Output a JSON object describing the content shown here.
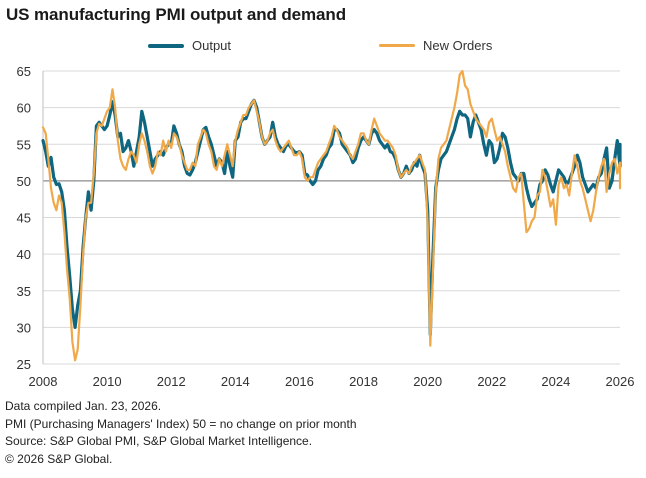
{
  "title": "US manufacturing PMI output and demand",
  "legend": [
    {
      "name": "Output",
      "color": "#0e6680"
    },
    {
      "name": "New Orders",
      "color": "#f0a848"
    }
  ],
  "footer": [
    "Data compiled Jan. 23, 2026.",
    "PMI (Purchasing Managers' Index) 50 = no change on prior month",
    "Source: S&P Global PMI, S&P Global Market Intelligence.",
    "© 2026 S&P Global."
  ],
  "chart_data": {
    "type": "line",
    "title": "US manufacturing PMI output and demand",
    "xlabel": "",
    "ylabel": "",
    "xlim": [
      2008,
      2026
    ],
    "ylim": [
      25,
      65
    ],
    "x_ticks": [
      "2008",
      "2010",
      "2012",
      "2014",
      "2016",
      "2018",
      "2020",
      "2022",
      "2024",
      "2026"
    ],
    "y_ticks": [
      25,
      30,
      35,
      40,
      45,
      50,
      55,
      60,
      65
    ],
    "reference_line": 50,
    "grid": true,
    "legend_position": "top",
    "x_start": "2008-01",
    "x_frequency": "monthly",
    "series": [
      {
        "name": "Output",
        "color": "#0e6680",
        "values": [
          55.5,
          54.0,
          52.0,
          53.2,
          50.5,
          49.5,
          49.6,
          48.5,
          46.0,
          41.0,
          37.0,
          32.5,
          30.0,
          33.0,
          35.0,
          41.0,
          45.0,
          48.5,
          46.0,
          50.0,
          57.5,
          58.0,
          57.5,
          57.0,
          57.5,
          59.0,
          60.8,
          59.0,
          56.0,
          56.5,
          54.0,
          54.5,
          55.5,
          54.0,
          52.0,
          54.0,
          56.0,
          59.5,
          58.0,
          56.0,
          54.0,
          52.0,
          53.0,
          53.5,
          54.0,
          53.5,
          54.5,
          55.0,
          55.0,
          57.5,
          56.5,
          55.0,
          54.0,
          52.0,
          51.0,
          50.8,
          51.5,
          52.5,
          54.0,
          55.5,
          57.0,
          57.3,
          56.0,
          55.0,
          53.5,
          52.0,
          53.0,
          52.5,
          51.0,
          54.0,
          52.0,
          50.5,
          55.5,
          56.0,
          58.0,
          58.5,
          58.5,
          59.5,
          60.5,
          61.0,
          60.0,
          58.0,
          56.0,
          55.0,
          55.5,
          56.0,
          58.0,
          56.0,
          55.0,
          54.5,
          54.0,
          54.8,
          55.0,
          54.5,
          54.0,
          53.8,
          54.0,
          53.5,
          51.0,
          50.8,
          50.0,
          49.5,
          50.0,
          51.5,
          52.0,
          53.0,
          53.5,
          54.5,
          55.0,
          57.0,
          57.0,
          56.5,
          55.0,
          54.5,
          54.0,
          53.5,
          52.5,
          53.0,
          54.5,
          55.5,
          56.0,
          55.5,
          55.0,
          56.5,
          57.0,
          56.5,
          55.5,
          55.0,
          54.5,
          55.0,
          54.0,
          53.8,
          53.0,
          51.5,
          50.5,
          51.0,
          52.0,
          51.0,
          51.5,
          52.5,
          52.0,
          53.5,
          52.0,
          51.0,
          46.0,
          29.0,
          40.0,
          49.0,
          51.5,
          53.0,
          53.5,
          54.0,
          55.0,
          56.0,
          57.0,
          58.5,
          59.5,
          59.0,
          59.0,
          58.5,
          56.0,
          58.0,
          59.0,
          58.0,
          57.0,
          55.0,
          53.5,
          55.5,
          55.0,
          52.5,
          53.0,
          54.5,
          56.5,
          56.0,
          54.5,
          52.5,
          51.0,
          50.5,
          50.0,
          51.0,
          51.0,
          49.0,
          47.5,
          46.5,
          47.0,
          47.5,
          49.5,
          50.0,
          51.5,
          50.8,
          49.5,
          48.5,
          50.0,
          51.5,
          51.0,
          50.5,
          49.5,
          50.0,
          51.0,
          52.0,
          53.5,
          52.5,
          50.5,
          49.5,
          48.5,
          49.0,
          49.5,
          49.0,
          50.5,
          51.0,
          53.0,
          54.5,
          49.0,
          50.0,
          53.0,
          55.5,
          52.0,
          54.0,
          54.0,
          55.0
        ]
      },
      {
        "name": "New Orders",
        "color": "#f0a848",
        "values": [
          57.3,
          56.5,
          53.0,
          49.0,
          47.0,
          46.0,
          48.0,
          47.0,
          43.0,
          38.0,
          34.0,
          28.0,
          25.5,
          27.0,
          33.0,
          40.0,
          45.0,
          47.0,
          47.0,
          51.0,
          56.5,
          57.8,
          57.5,
          58.5,
          59.5,
          60.0,
          62.5,
          60.0,
          55.5,
          53.0,
          52.0,
          51.5,
          53.0,
          54.0,
          53.5,
          52.5,
          55.0,
          56.5,
          55.5,
          54.0,
          52.0,
          51.0,
          52.0,
          54.0,
          53.5,
          55.5,
          54.0,
          55.5,
          54.5,
          56.5,
          56.0,
          55.0,
          53.5,
          52.5,
          51.5,
          51.5,
          52.5,
          52.0,
          55.0,
          56.0,
          57.0,
          56.5,
          55.0,
          54.0,
          52.0,
          51.5,
          53.0,
          52.0,
          53.5,
          55.0,
          53.5,
          52.0,
          55.5,
          57.0,
          58.0,
          59.0,
          59.0,
          60.0,
          60.5,
          61.0,
          59.5,
          58.0,
          56.0,
          55.0,
          55.5,
          56.5,
          57.0,
          55.5,
          54.5,
          54.0,
          54.5,
          55.0,
          55.5,
          54.5,
          53.5,
          53.5,
          54.0,
          53.0,
          50.5,
          50.0,
          50.5,
          50.5,
          51.5,
          52.5,
          53.0,
          53.5,
          54.0,
          55.0,
          56.0,
          57.5,
          57.0,
          56.0,
          55.5,
          55.0,
          54.5,
          53.5,
          53.0,
          54.0,
          55.0,
          56.5,
          56.5,
          55.5,
          55.0,
          57.0,
          58.5,
          57.5,
          56.5,
          56.0,
          55.5,
          55.5,
          55.0,
          54.5,
          53.5,
          51.5,
          50.5,
          51.0,
          51.5,
          51.0,
          52.0,
          52.5,
          53.0,
          53.5,
          52.5,
          51.5,
          44.0,
          27.5,
          38.0,
          48.5,
          53.0,
          54.5,
          55.0,
          55.5,
          57.0,
          58.5,
          60.0,
          62.0,
          64.5,
          65.0,
          63.0,
          62.5,
          60.5,
          59.5,
          58.5,
          58.0,
          57.5,
          57.0,
          56.0,
          58.0,
          58.5,
          57.0,
          55.5,
          56.0,
          55.0,
          54.0,
          52.0,
          50.5,
          49.0,
          48.5,
          50.5,
          51.0,
          47.0,
          43.0,
          43.5,
          44.5,
          45.0,
          48.0,
          48.5,
          51.5,
          50.5,
          48.5,
          46.5,
          47.5,
          44.0,
          49.5,
          50.5,
          49.0,
          49.5,
          48.0,
          51.0,
          53.5,
          52.0,
          50.0,
          49.0,
          47.5,
          46.0,
          44.5,
          46.0,
          48.5,
          50.5,
          52.0,
          53.0,
          48.5,
          51.0,
          52.5,
          53.0,
          51.0,
          52.5,
          49.0,
          50.8
        ]
      }
    ]
  }
}
